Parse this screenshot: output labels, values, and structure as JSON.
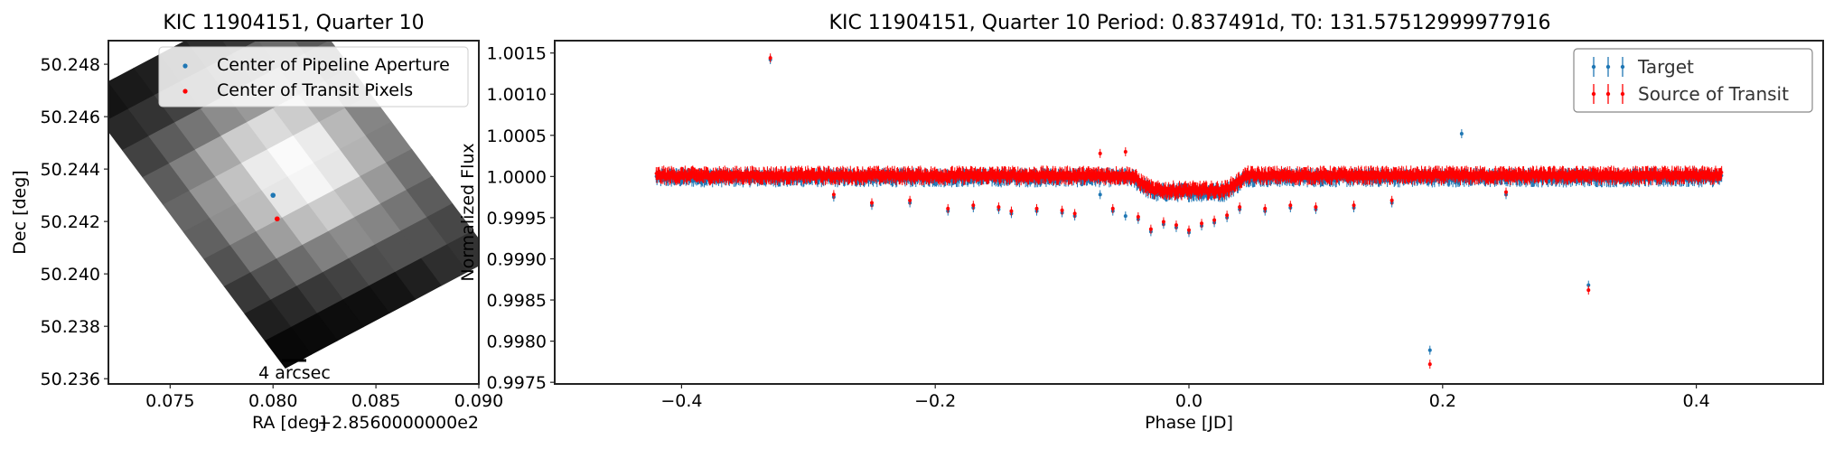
{
  "chart_data": [
    {
      "type": "heatmap",
      "title": "KIC 11904151, Quarter 10",
      "xlabel": "RA [deg]",
      "ylabel": "Dec [deg]",
      "x_offset_label": "+2.8560000000e2",
      "xlim": [
        0.072,
        0.09
      ],
      "ylim": [
        50.2358,
        50.2489
      ],
      "xticks": [
        0.075,
        0.08,
        0.085,
        0.09
      ],
      "xtick_labels": [
        "0.075",
        "0.080",
        "0.085",
        "0.090"
      ],
      "yticks": [
        50.236,
        50.238,
        50.24,
        50.242,
        50.244,
        50.246,
        50.248
      ],
      "ytick_labels": [
        "50.236",
        "50.238",
        "50.240",
        "50.242",
        "50.244",
        "50.246",
        "50.248"
      ],
      "grid": false,
      "legend_position": "top-right",
      "scale_bar_label": "4 arcsec",
      "pixel_grid": {
        "corners_ra_dec": {
          "top": [
            0.0808,
            50.251
          ],
          "right": [
            0.0907,
            50.2406
          ],
          "bottom": [
            0.0803,
            50.2366
          ],
          "left": [
            0.0707,
            50.2468
          ]
        },
        "rows": 8,
        "cols": 10,
        "values": [
          [
            0.25,
            0.35,
            0.42,
            0.48,
            0.52,
            0.5,
            0.44,
            0.36,
            0.28,
            0.2
          ],
          [
            0.28,
            0.42,
            0.55,
            0.66,
            0.72,
            0.7,
            0.6,
            0.46,
            0.32,
            0.18
          ],
          [
            0.22,
            0.4,
            0.6,
            0.8,
            0.92,
            0.9,
            0.74,
            0.52,
            0.32,
            0.12
          ],
          [
            0.18,
            0.36,
            0.6,
            0.86,
            0.98,
            0.96,
            0.8,
            0.55,
            0.3,
            0.08
          ],
          [
            0.14,
            0.3,
            0.55,
            0.8,
            0.92,
            0.9,
            0.74,
            0.5,
            0.26,
            0.06
          ],
          [
            0.12,
            0.26,
            0.46,
            0.66,
            0.76,
            0.74,
            0.62,
            0.42,
            0.22,
            0.05
          ],
          [
            0.1,
            0.2,
            0.36,
            0.5,
            0.58,
            0.56,
            0.46,
            0.32,
            0.16,
            0.04
          ],
          [
            0.08,
            0.16,
            0.26,
            0.36,
            0.4,
            0.38,
            0.32,
            0.22,
            0.12,
            0.03
          ]
        ]
      },
      "series": [
        {
          "name": "Center of Pipeline Aperture",
          "color": "#1f77b4",
          "x": [
            0.08
          ],
          "y": [
            50.243
          ]
        },
        {
          "name": "Center of Transit Pixels",
          "color": "#ff0000",
          "x": [
            0.0802
          ],
          "y": [
            50.2421
          ]
        }
      ]
    },
    {
      "type": "scatter",
      "title": "KIC 11904151, Quarter 10 Period: 0.837491d, T0: 131.57512999977916",
      "xlabel": "Phase [JD]",
      "ylabel": "Normalized Flux",
      "xlim": [
        -0.5,
        0.5
      ],
      "ylim": [
        0.99748,
        1.00165
      ],
      "xticks": [
        -0.4,
        -0.2,
        0.0,
        0.2,
        0.4
      ],
      "xtick_labels": [
        "−0.4",
        "−0.2",
        "0.0",
        "0.2",
        "0.4"
      ],
      "yticks": [
        0.9975,
        0.998,
        0.9985,
        0.999,
        0.9995,
        1.0,
        1.0005,
        1.001,
        1.0015
      ],
      "ytick_labels": [
        "0.9975",
        "0.9980",
        "0.9985",
        "0.9990",
        "0.9995",
        "1.0000",
        "1.0005",
        "1.0010",
        "1.0015"
      ],
      "grid": false,
      "legend_position": "top-right",
      "band": {
        "x_range": [
          -0.42,
          0.42
        ],
        "baseline": 1.0,
        "scatter_amplitude": 8e-05,
        "transit_center": 0.0,
        "transit_half_width": 0.045,
        "transit_depth": 0.00018
      },
      "series": [
        {
          "name": "Target",
          "color": "#1f77b4",
          "outliers_x": [
            -0.33,
            -0.28,
            -0.25,
            -0.22,
            -0.19,
            -0.17,
            -0.15,
            -0.14,
            -0.12,
            -0.1,
            -0.09,
            -0.07,
            -0.06,
            -0.05,
            -0.04,
            -0.03,
            -0.02,
            -0.01,
            0.0,
            0.01,
            0.02,
            0.03,
            0.04,
            0.06,
            0.08,
            0.1,
            0.13,
            0.16,
            0.19,
            0.215,
            0.25,
            0.315
          ],
          "outliers_y": [
            1.00142,
            0.99975,
            0.99965,
            0.99968,
            0.99958,
            0.99962,
            0.9996,
            0.99955,
            0.99958,
            0.99956,
            0.99952,
            0.99978,
            0.99958,
            0.99952,
            0.99948,
            0.99933,
            0.99942,
            0.99938,
            0.99932,
            0.9994,
            0.99944,
            0.9995,
            0.9996,
            0.99958,
            0.99962,
            0.9996,
            0.99962,
            0.99968,
            0.99789,
            1.00052,
            0.99978,
            0.99868
          ]
        },
        {
          "name": "Source of Transit",
          "color": "#ff0000",
          "outliers_x": [
            -0.33,
            -0.28,
            -0.25,
            -0.22,
            -0.19,
            -0.17,
            -0.15,
            -0.14,
            -0.12,
            -0.1,
            -0.09,
            -0.07,
            -0.06,
            -0.05,
            -0.04,
            -0.03,
            -0.02,
            -0.01,
            0.0,
            0.01,
            0.02,
            0.03,
            0.04,
            0.06,
            0.08,
            0.1,
            0.13,
            0.16,
            0.19,
            0.25,
            0.315
          ],
          "outliers_y": [
            1.00144,
            0.99978,
            0.99968,
            0.99971,
            0.99961,
            0.99965,
            0.99963,
            0.99958,
            0.99961,
            0.99959,
            0.99955,
            1.00028,
            0.99961,
            1.0003,
            0.99951,
            0.99936,
            0.99945,
            0.99941,
            0.99935,
            0.99943,
            0.99947,
            0.99953,
            0.99963,
            0.99961,
            0.99965,
            0.99963,
            0.99965,
            0.99971,
            0.99772,
            0.99981,
            0.99862
          ]
        }
      ]
    }
  ]
}
